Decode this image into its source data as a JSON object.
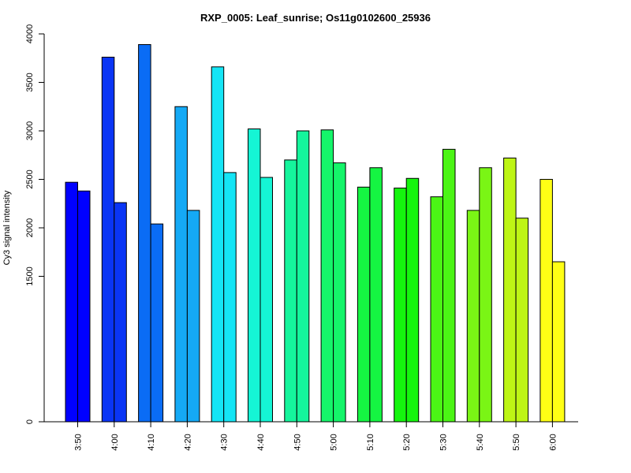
{
  "chart_data": {
    "type": "bar",
    "title": "RXP_0005: Leaf_sunrise; Os11g0102600_25936",
    "xlabel": "",
    "ylabel": "Cy3 signal intensity",
    "ylim": [
      0,
      4000
    ],
    "y_ticks": [
      "0",
      "1500",
      "2000",
      "2500",
      "3000",
      "3500",
      "4000"
    ],
    "y_tick_values": [
      0,
      1500,
      2000,
      2500,
      3000,
      3500,
      4000
    ],
    "categories": [
      "3:50",
      "4:00",
      "4:10",
      "4:20",
      "4:30",
      "4:40",
      "4:50",
      "5:00",
      "5:10",
      "5:20",
      "5:30",
      "5:40",
      "5:50",
      "6:00"
    ],
    "colors": [
      "#0000FF",
      "#0A35F5",
      "#0A6CF5",
      "#15A9F5",
      "#15E5F5",
      "#15F5D5",
      "#15F59C",
      "#15F56A",
      "#15F542",
      "#15F50E",
      "#4BF515",
      "#7AF515",
      "#BEF515",
      "#FFFF15"
    ],
    "series": [
      {
        "values": [
          2470,
          3760,
          3890,
          3250,
          3660,
          3020,
          2700,
          3010,
          2420,
          2410,
          2320,
          2180,
          2720,
          2500
        ]
      },
      {
        "values": [
          2380,
          2260,
          2040,
          2180,
          2570,
          2520,
          3000,
          2670,
          2620,
          2510,
          2810,
          2620,
          2100,
          1650
        ]
      }
    ],
    "grid": false,
    "legend": "none"
  }
}
